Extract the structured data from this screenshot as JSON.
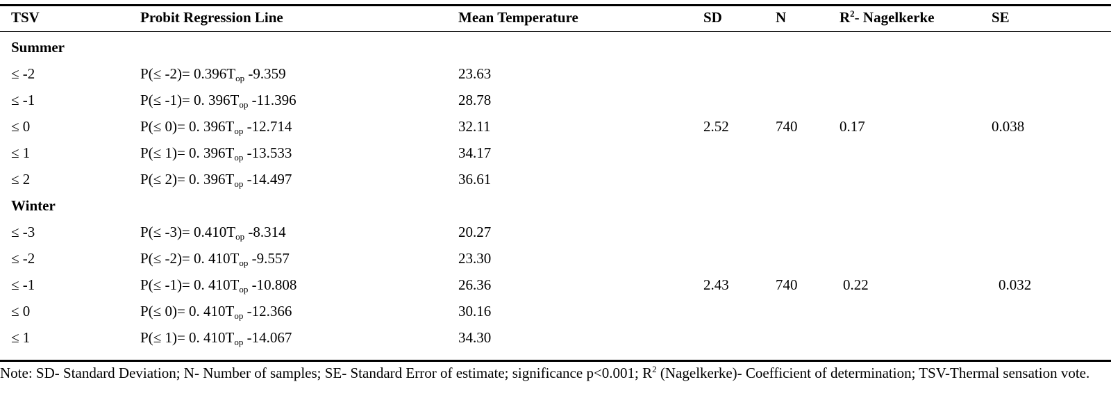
{
  "table": {
    "headers": {
      "tsv": "TSV",
      "probit": "Probit Regression Line",
      "mean": "Mean Temperature",
      "sd": "SD",
      "n": "N",
      "r2_base": "R",
      "r2_sup": "2",
      "r2_rest": "- Nagelkerke",
      "se": "SE"
    },
    "summer": {
      "label": "Summer",
      "rows": [
        {
          "tsv": "≤ -2",
          "probit_pre": "P(≤ -2)= 0.396T",
          "probit_sub": "op",
          "probit_post": " -9.359",
          "mean": "23.63"
        },
        {
          "tsv": "≤ -1",
          "probit_pre": "P(≤ -1)= 0. 396T",
          "probit_sub": "op",
          "probit_post": " -11.396",
          "mean": "28.78"
        },
        {
          "tsv": "≤ 0",
          "probit_pre": "P(≤ 0)= 0. 396T",
          "probit_sub": "op",
          "probit_post": " -12.714",
          "mean": "32.11"
        },
        {
          "tsv": "≤ 1",
          "probit_pre": "P(≤ 1)= 0. 396T",
          "probit_sub": "op",
          "probit_post": " -13.533",
          "mean": "34.17"
        },
        {
          "tsv": "≤ 2",
          "probit_pre": "P(≤ 2)= 0. 396T",
          "probit_sub": "op",
          "probit_post": " -14.497",
          "mean": "36.61"
        }
      ],
      "sd": "2.52",
      "n": "740",
      "r2": "0.17",
      "se": "0.038"
    },
    "winter": {
      "label": "Winter",
      "rows": [
        {
          "tsv": "≤ -3",
          "probit_pre": "P(≤ -3)= 0.410T",
          "probit_sub": "op",
          "probit_post": " -8.314",
          "mean": "20.27"
        },
        {
          "tsv": "≤ -2",
          "probit_pre": "P(≤ -2)= 0. 410T",
          "probit_sub": "op",
          "probit_post": " -9.557",
          "mean": "23.30"
        },
        {
          "tsv": "≤ -1",
          "probit_pre": "P(≤ -1)= 0. 410T",
          "probit_sub": "op",
          "probit_post": " -10.808",
          "mean": "26.36"
        },
        {
          "tsv": "≤ 0",
          "probit_pre": "P(≤ 0)= 0. 410T",
          "probit_sub": "op",
          "probit_post": " -12.366",
          "mean": "30.16"
        },
        {
          "tsv": "≤ 1",
          "probit_pre": "P(≤ 1)= 0. 410T",
          "probit_sub": "op",
          "probit_post": " -14.067",
          "mean": "34.30"
        }
      ],
      "sd": "2.43",
      "n": "740",
      "r2": "0.22",
      "se": "0.032"
    }
  },
  "note": {
    "part1": "Note: SD- Standard Deviation; N- Number of samples; SE- Standard Error of estimate; significance p<0.001; R",
    "sup": "2",
    "part2": " (Nagelkerke)- Coefficient of determination; TSV-Thermal sensation vote."
  }
}
